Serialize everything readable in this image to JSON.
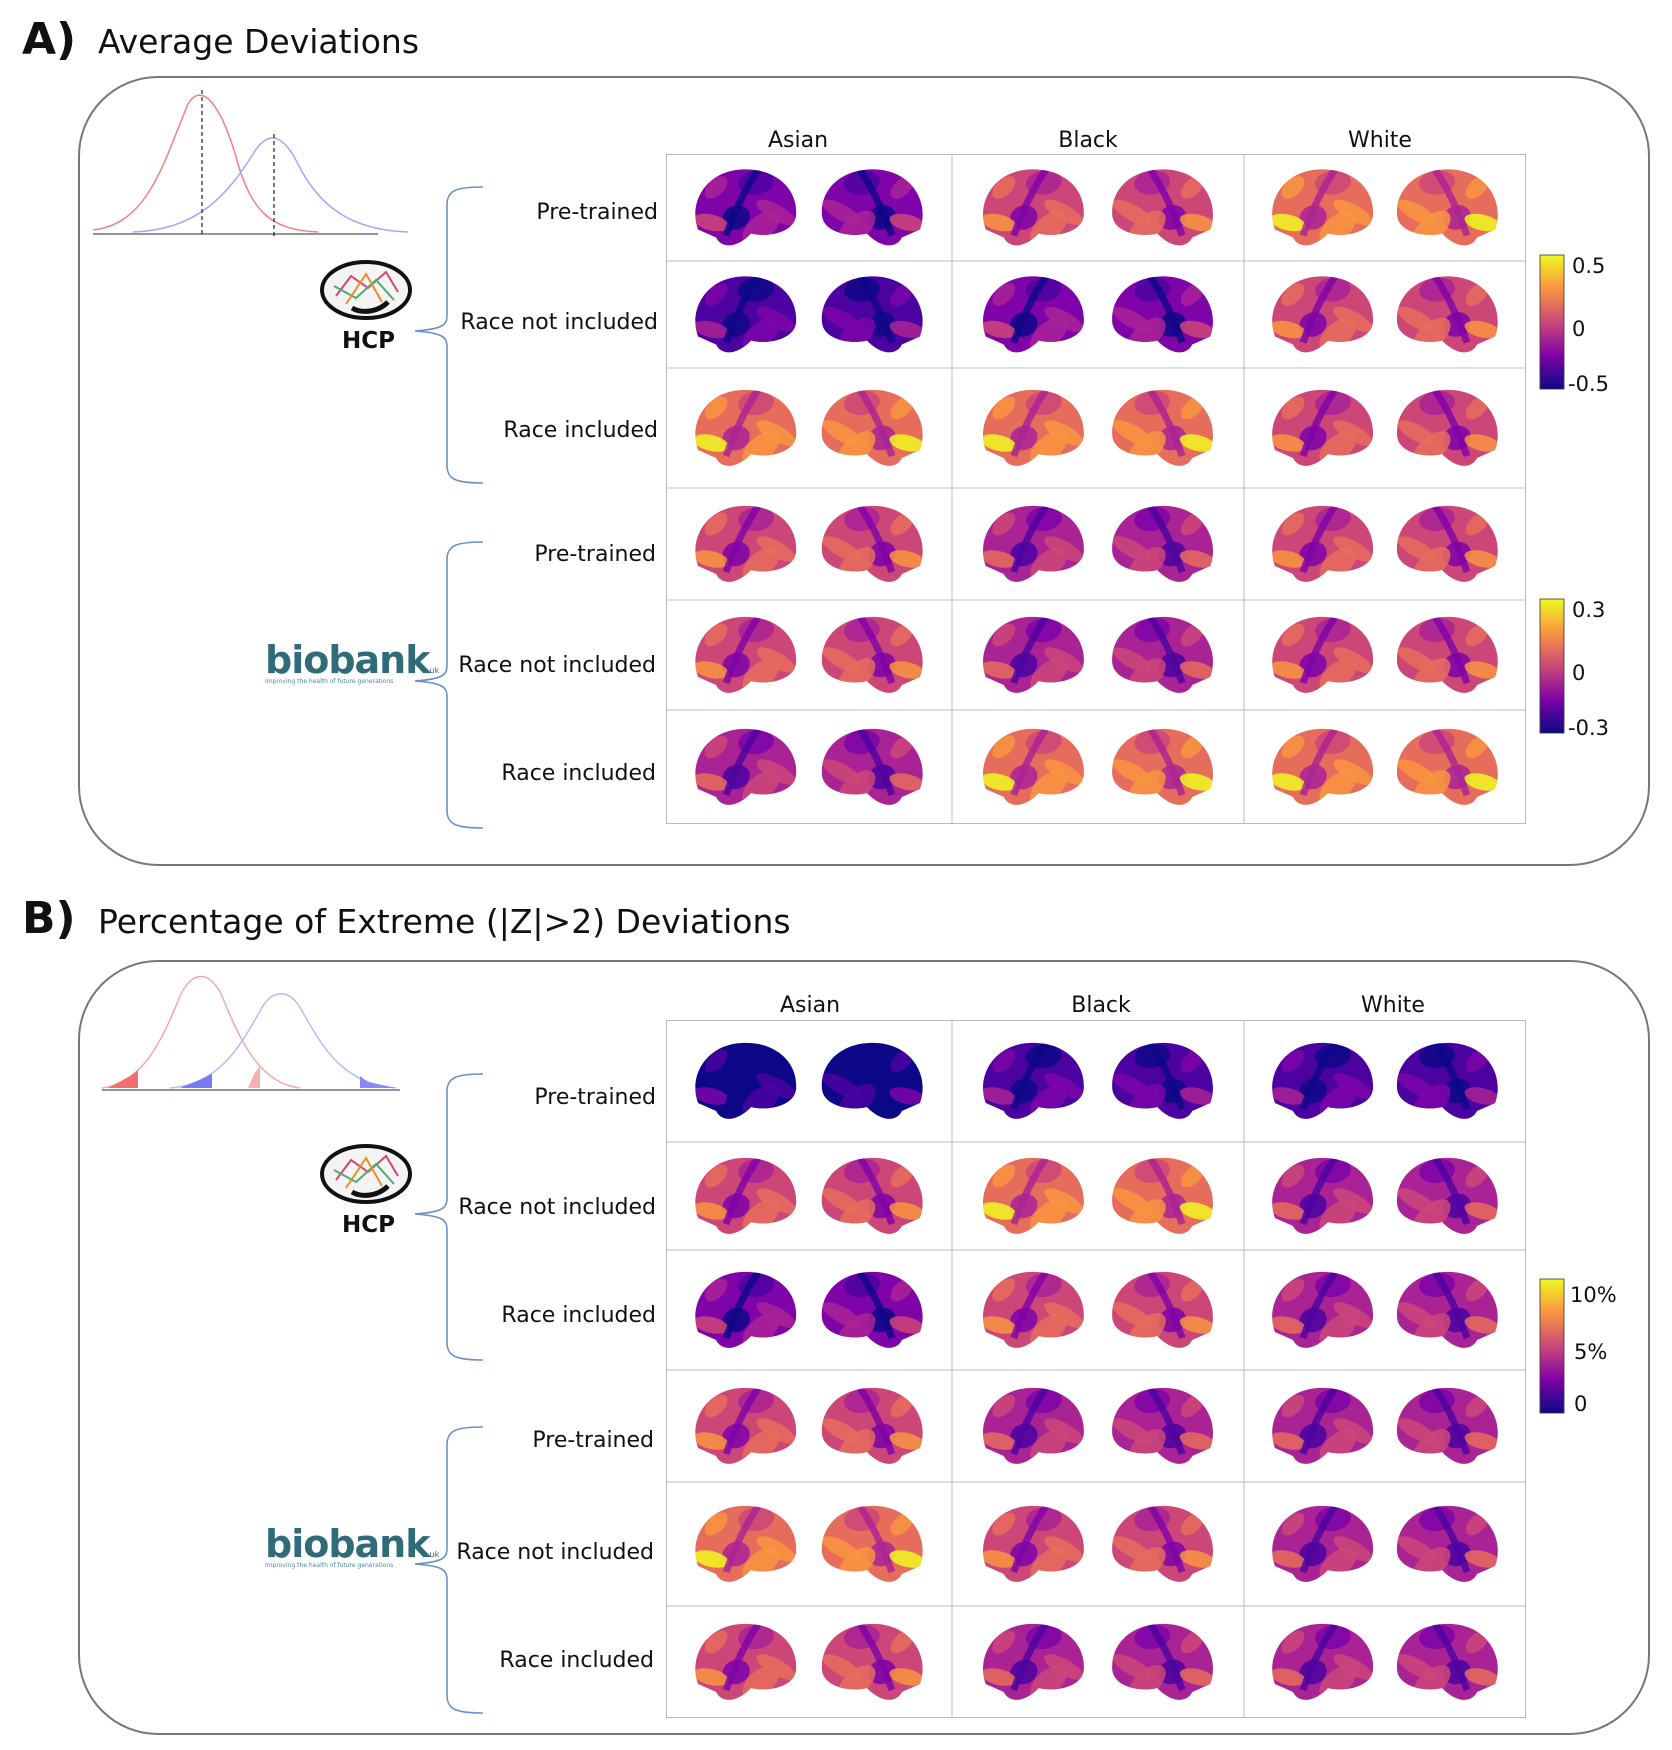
{
  "sections": [
    {
      "letter": "A)",
      "title": "Average Deviations",
      "columns": [
        "Asian",
        "Black",
        "White"
      ],
      "groups": [
        {
          "logo": "HCP",
          "rows": [
            "Pre-trained",
            "Race not included",
            "Race included"
          ]
        },
        {
          "logo": "biobank",
          "rows": [
            "Pre-trained",
            "Race not included",
            "Race included"
          ]
        }
      ],
      "colorbars": [
        {
          "ticks": [
            "0.5",
            "0",
            "-0.5"
          ]
        },
        {
          "ticks": [
            "0.3",
            "0",
            "-0.3"
          ]
        }
      ]
    },
    {
      "letter": "B)",
      "title": "Percentage of Extreme (|Z|>2) Deviations",
      "columns": [
        "Asian",
        "Black",
        "White"
      ],
      "groups": [
        {
          "logo": "HCP",
          "rows": [
            "Pre-trained",
            "Race not included",
            "Race included"
          ]
        },
        {
          "logo": "biobank",
          "rows": [
            "Pre-trained",
            "Race not included",
            "Race included"
          ]
        }
      ],
      "colorbars": [
        {
          "ticks": [
            "10%",
            "5%",
            "0"
          ]
        }
      ]
    }
  ],
  "logos": {
    "hcp_text": "HCP",
    "biobank_word": "biobank",
    "biobank_uk": "uk",
    "biobank_tagline": "Improving the health of future generations"
  },
  "colors": {
    "plasma_dark": "#0d0887",
    "plasma_purple": "#7e03a8",
    "plasma_magenta": "#cc4778",
    "plasma_orange": "#f89540",
    "plasma_yellow": "#f0f921",
    "frame": "#777777",
    "bracket": "#6c8fc7"
  }
}
